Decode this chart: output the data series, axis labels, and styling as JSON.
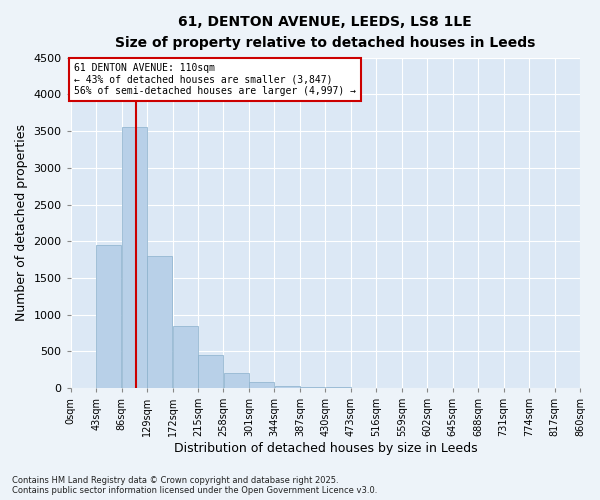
{
  "title": "61, DENTON AVENUE, LEEDS, LS8 1LE",
  "subtitle": "Size of property relative to detached houses in Leeds",
  "xlabel": "Distribution of detached houses by size in Leeds",
  "ylabel": "Number of detached properties",
  "footer_line1": "Contains HM Land Registry data © Crown copyright and database right 2025.",
  "footer_line2": "Contains public sector information licensed under the Open Government Licence v3.0.",
  "bin_labels": [
    "0sqm",
    "43sqm",
    "86sqm",
    "129sqm",
    "172sqm",
    "215sqm",
    "258sqm",
    "301sqm",
    "344sqm",
    "387sqm",
    "430sqm",
    "473sqm",
    "516sqm",
    "559sqm",
    "602sqm",
    "645sqm",
    "688sqm",
    "731sqm",
    "774sqm",
    "817sqm",
    "860sqm"
  ],
  "bin_edges": [
    0,
    43,
    86,
    129,
    172,
    215,
    258,
    301,
    344,
    387,
    430,
    473,
    516,
    559,
    602,
    645,
    688,
    731,
    774,
    817,
    860
  ],
  "bar_heights": [
    0,
    1950,
    3550,
    1800,
    850,
    450,
    200,
    80,
    30,
    15,
    8,
    4,
    2,
    1,
    1,
    0,
    0,
    0,
    0,
    0
  ],
  "bar_color": "#b8d0e8",
  "bar_edge_color": "#8ab0cc",
  "vline_x": 110,
  "vline_color": "#cc0000",
  "ylim": [
    0,
    4500
  ],
  "yticks": [
    0,
    500,
    1000,
    1500,
    2000,
    2500,
    3000,
    3500,
    4000,
    4500
  ],
  "annotation_title": "61 DENTON AVENUE: 110sqm",
  "annotation_line1": "← 43% of detached houses are smaller (3,847)",
  "annotation_line2": "56% of semi-detached houses are larger (4,997) →",
  "annotation_box_color": "#cc0000",
  "bg_color": "#dce8f5",
  "fig_bg_color": "#edf3f9",
  "grid_color": "#ffffff"
}
